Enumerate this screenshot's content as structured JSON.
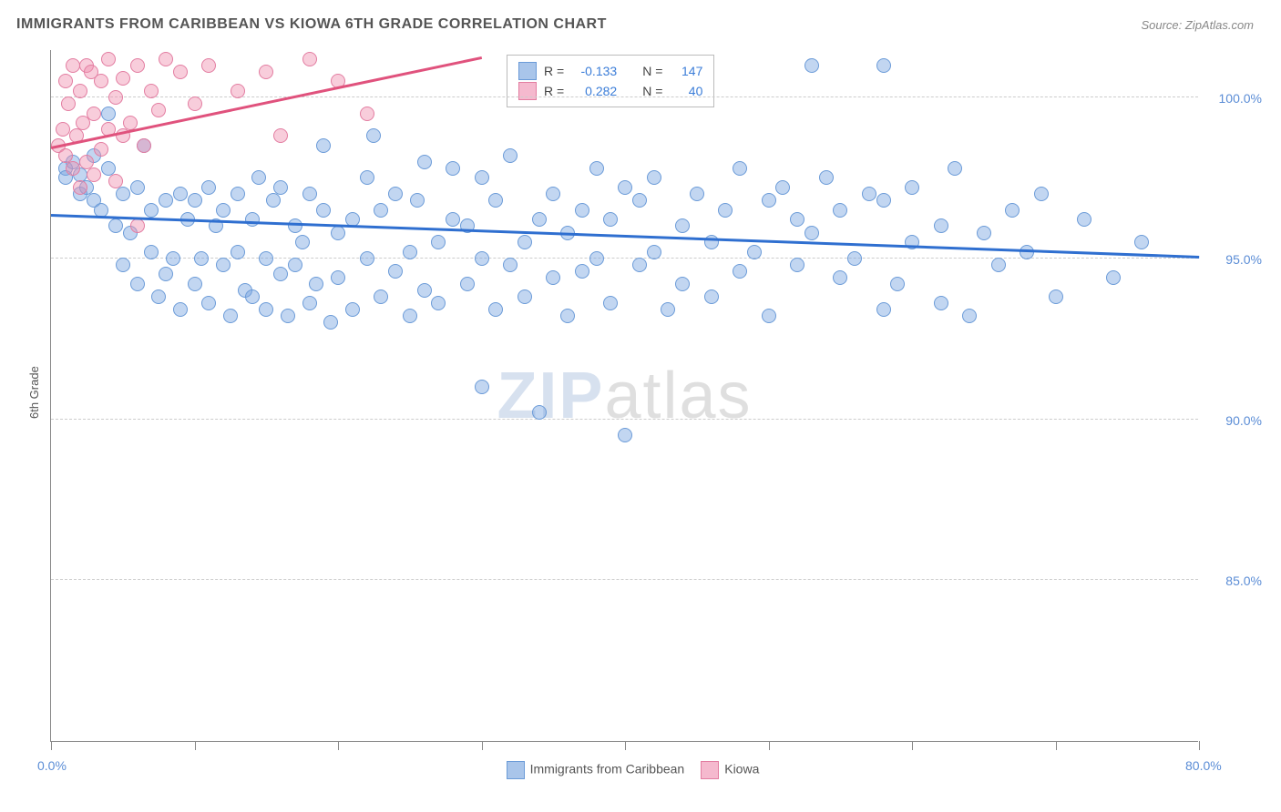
{
  "title": "IMMIGRANTS FROM CARIBBEAN VS KIOWA 6TH GRADE CORRELATION CHART",
  "source": "Source: ZipAtlas.com",
  "ylabel": "6th Grade",
  "watermark": {
    "part1": "ZIP",
    "part2": "atlas"
  },
  "chart": {
    "type": "scatter",
    "background_color": "#ffffff",
    "grid_color": "#cccccc",
    "axis_color": "#888888",
    "xlim": [
      0,
      80
    ],
    "ylim": [
      80,
      101.5
    ],
    "x_ticks": [
      0,
      10,
      20,
      30,
      40,
      50,
      60,
      70,
      80
    ],
    "x_tick_labels": {
      "0": "0.0%",
      "80": "80.0%"
    },
    "y_ticks": [
      85,
      90,
      95,
      100
    ],
    "y_tick_labels": {
      "85": "85.0%",
      "90": "90.0%",
      "95": "95.0%",
      "100": "100.0%"
    },
    "tick_label_color": "#5b8dd6",
    "tick_label_fontsize": 14,
    "title_fontsize": 16,
    "title_color": "#555555",
    "marker_size": 16,
    "series": [
      {
        "name": "Immigrants from Caribbean",
        "color_fill": "rgba(120,165,225,0.45)",
        "color_stroke": "#6b9bd8",
        "swatch_fill": "#a9c5ea",
        "swatch_stroke": "#6b9bd8",
        "R": "-0.133",
        "N": "147",
        "trend": {
          "x1": 0,
          "y1": 96.3,
          "x2": 80,
          "y2": 95.0,
          "color": "#2f6fd0",
          "width": 2.5
        },
        "points": [
          [
            1,
            97.8
          ],
          [
            1,
            97.5
          ],
          [
            1.5,
            98
          ],
          [
            2,
            97.6
          ],
          [
            2,
            97
          ],
          [
            2.5,
            97.2
          ],
          [
            3,
            98.2
          ],
          [
            3,
            96.8
          ],
          [
            3.5,
            96.5
          ],
          [
            4,
            97.8
          ],
          [
            4,
            99.5
          ],
          [
            4.5,
            96
          ],
          [
            5,
            97
          ],
          [
            5,
            94.8
          ],
          [
            5.5,
            95.8
          ],
          [
            6,
            94.2
          ],
          [
            6,
            97.2
          ],
          [
            6.5,
            98.5
          ],
          [
            7,
            96.5
          ],
          [
            7,
            95.2
          ],
          [
            7.5,
            93.8
          ],
          [
            8,
            96.8
          ],
          [
            8,
            94.5
          ],
          [
            8.5,
            95
          ],
          [
            9,
            97
          ],
          [
            9,
            93.4
          ],
          [
            9.5,
            96.2
          ],
          [
            10,
            94.2
          ],
          [
            10,
            96.8
          ],
          [
            10.5,
            95
          ],
          [
            11,
            97.2
          ],
          [
            11,
            93.6
          ],
          [
            11.5,
            96
          ],
          [
            12,
            94.8
          ],
          [
            12,
            96.5
          ],
          [
            12.5,
            93.2
          ],
          [
            13,
            97
          ],
          [
            13,
            95.2
          ],
          [
            13.5,
            94
          ],
          [
            14,
            96.2
          ],
          [
            14,
            93.8
          ],
          [
            14.5,
            97.5
          ],
          [
            15,
            95
          ],
          [
            15,
            93.4
          ],
          [
            15.5,
            96.8
          ],
          [
            16,
            94.5
          ],
          [
            16,
            97.2
          ],
          [
            16.5,
            93.2
          ],
          [
            17,
            96
          ],
          [
            17,
            94.8
          ],
          [
            17.5,
            95.5
          ],
          [
            18,
            93.6
          ],
          [
            18,
            97
          ],
          [
            18.5,
            94.2
          ],
          [
            19,
            96.5
          ],
          [
            19,
            98.5
          ],
          [
            19.5,
            93
          ],
          [
            20,
            95.8
          ],
          [
            20,
            94.4
          ],
          [
            21,
            96.2
          ],
          [
            21,
            93.4
          ],
          [
            22,
            97.5
          ],
          [
            22,
            95
          ],
          [
            22.5,
            98.8
          ],
          [
            23,
            93.8
          ],
          [
            23,
            96.5
          ],
          [
            24,
            94.6
          ],
          [
            24,
            97
          ],
          [
            25,
            95.2
          ],
          [
            25,
            93.2
          ],
          [
            25.5,
            96.8
          ],
          [
            26,
            94
          ],
          [
            26,
            98
          ],
          [
            27,
            95.5
          ],
          [
            27,
            93.6
          ],
          [
            28,
            96.2
          ],
          [
            28,
            97.8
          ],
          [
            29,
            94.2
          ],
          [
            29,
            96
          ],
          [
            30,
            95
          ],
          [
            30,
            97.5
          ],
          [
            30,
            91
          ],
          [
            31,
            93.4
          ],
          [
            31,
            96.8
          ],
          [
            32,
            94.8
          ],
          [
            32,
            98.2
          ],
          [
            33,
            95.5
          ],
          [
            33,
            93.8
          ],
          [
            34,
            90.2
          ],
          [
            34,
            96.2
          ],
          [
            35,
            94.4
          ],
          [
            35,
            97
          ],
          [
            36,
            95.8
          ],
          [
            36,
            93.2
          ],
          [
            37,
            96.5
          ],
          [
            37,
            94.6
          ],
          [
            38,
            97.8
          ],
          [
            38,
            95
          ],
          [
            39,
            93.6
          ],
          [
            39,
            96.2
          ],
          [
            40,
            97.2
          ],
          [
            40,
            89.5
          ],
          [
            41,
            94.8
          ],
          [
            41,
            96.8
          ],
          [
            42,
            95.2
          ],
          [
            42,
            97.5
          ],
          [
            43,
            93.4
          ],
          [
            44,
            96
          ],
          [
            44,
            94.2
          ],
          [
            45,
            97
          ],
          [
            46,
            95.5
          ],
          [
            46,
            93.8
          ],
          [
            47,
            96.5
          ],
          [
            48,
            97.8
          ],
          [
            48,
            94.6
          ],
          [
            49,
            95.2
          ],
          [
            50,
            96.8
          ],
          [
            50,
            93.2
          ],
          [
            51,
            97.2
          ],
          [
            52,
            94.8
          ],
          [
            52,
            96.2
          ],
          [
            53,
            95.8
          ],
          [
            53,
            101
          ],
          [
            54,
            97.5
          ],
          [
            55,
            94.4
          ],
          [
            55,
            96.5
          ],
          [
            56,
            95
          ],
          [
            57,
            97
          ],
          [
            58,
            93.4
          ],
          [
            58,
            96.8
          ],
          [
            58,
            101
          ],
          [
            59,
            94.2
          ],
          [
            60,
            97.2
          ],
          [
            60,
            95.5
          ],
          [
            62,
            96
          ],
          [
            62,
            93.6
          ],
          [
            63,
            97.8
          ],
          [
            64,
            93.2
          ],
          [
            65,
            95.8
          ],
          [
            66,
            94.8
          ],
          [
            67,
            96.5
          ],
          [
            68,
            95.2
          ],
          [
            69,
            97
          ],
          [
            70,
            93.8
          ],
          [
            72,
            96.2
          ],
          [
            74,
            94.4
          ],
          [
            76,
            95.5
          ]
        ]
      },
      {
        "name": "Kiowa",
        "color_fill": "rgba(240,145,175,0.45)",
        "color_stroke": "#e37da1",
        "swatch_fill": "#f5b9ce",
        "swatch_stroke": "#e37da1",
        "R": "0.282",
        "N": "40",
        "trend": {
          "x1": 0,
          "y1": 98.4,
          "x2": 30,
          "y2": 101.2,
          "color": "#e0527d",
          "width": 2.5
        },
        "points": [
          [
            0.5,
            98.5
          ],
          [
            0.8,
            99
          ],
          [
            1,
            98.2
          ],
          [
            1,
            100.5
          ],
          [
            1.2,
            99.8
          ],
          [
            1.5,
            97.8
          ],
          [
            1.5,
            101
          ],
          [
            1.8,
            98.8
          ],
          [
            2,
            100.2
          ],
          [
            2,
            97.2
          ],
          [
            2.2,
            99.2
          ],
          [
            2.5,
            101
          ],
          [
            2.5,
            98
          ],
          [
            2.8,
            100.8
          ],
          [
            3,
            99.5
          ],
          [
            3,
            97.6
          ],
          [
            3.5,
            100.5
          ],
          [
            3.5,
            98.4
          ],
          [
            4,
            101.2
          ],
          [
            4,
            99
          ],
          [
            4.5,
            100
          ],
          [
            4.5,
            97.4
          ],
          [
            5,
            98.8
          ],
          [
            5,
            100.6
          ],
          [
            5.5,
            99.2
          ],
          [
            6,
            101
          ],
          [
            6,
            96
          ],
          [
            6.5,
            98.5
          ],
          [
            7,
            100.2
          ],
          [
            7.5,
            99.6
          ],
          [
            8,
            101.2
          ],
          [
            9,
            100.8
          ],
          [
            10,
            99.8
          ],
          [
            11,
            101
          ],
          [
            13,
            100.2
          ],
          [
            15,
            100.8
          ],
          [
            16,
            98.8
          ],
          [
            18,
            101.2
          ],
          [
            20,
            100.5
          ],
          [
            22,
            99.5
          ]
        ]
      }
    ]
  },
  "legend_top": {
    "r_label": "R =",
    "n_label": "N ="
  },
  "legend_bottom": {
    "items": [
      "Immigrants from Caribbean",
      "Kiowa"
    ]
  }
}
